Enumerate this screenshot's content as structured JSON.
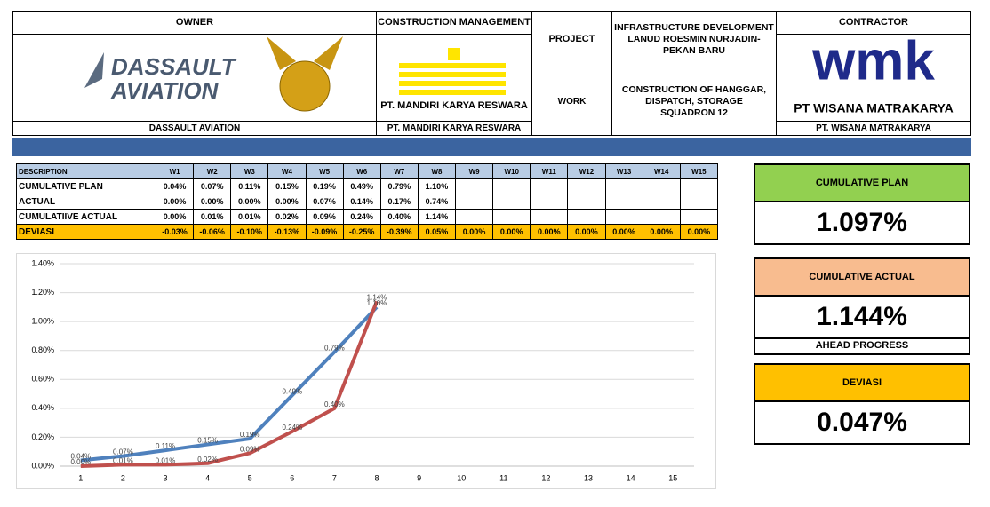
{
  "header": {
    "owner_title": "OWNER",
    "owner_logo": [
      "DASSAULT",
      "AVIATION"
    ],
    "owner_name": "DASSAULT AVIATION",
    "cm_title": "CONSTRUCTION MANAGEMENT",
    "cm_logo": "PT. MANDIRI KARYA RESWARA",
    "cm_name": "PT. MANDIRI KARYA RESWARA",
    "project_label": "PROJECT",
    "project": "INFRASTRUCTURE DEVELOPMENT LANUD ROESMIN NURJADIN-PEKAN BARU",
    "work_label": "WORK",
    "work": "CONSTRUCTION OF HANGGAR, DISPATCH, STORAGE SQUADRON 12",
    "contractor_title": "CONTRACTOR",
    "contractor_logo": [
      "wmk",
      "PT WISANA MATRAKARYA"
    ],
    "contractor_name": "PT. WISANA MATRAKARYA"
  },
  "table": {
    "columns": [
      "DESCRIPTION",
      "W1",
      "W2",
      "W3",
      "W4",
      "W5",
      "W6",
      "W7",
      "W8",
      "W9",
      "W10",
      "W11",
      "W12",
      "W13",
      "W14",
      "W15"
    ],
    "rows": [
      {
        "label": "CUMULATIVE PLAN",
        "values": [
          "0.04%",
          "0.07%",
          "0.11%",
          "0.15%",
          "0.19%",
          "0.49%",
          "0.79%",
          "1.10%"
        ]
      },
      {
        "label": "ACTUAL",
        "values": [
          "0.00%",
          "0.00%",
          "0.00%",
          "0.00%",
          "0.07%",
          "0.14%",
          "0.17%",
          "0.74%"
        ]
      },
      {
        "label": "CUMULATIIVE ACTUAL",
        "values": [
          "0.00%",
          "0.01%",
          "0.01%",
          "0.02%",
          "0.09%",
          "0.24%",
          "0.40%",
          "1.14%"
        ]
      },
      {
        "label": "DEVIASI",
        "values": [
          "-0.03%",
          "-0.06%",
          "-0.10%",
          "-0.13%",
          "-0.09%",
          "-0.25%",
          "-0.39%",
          "0.05%",
          "0.00%",
          "0.00%",
          "0.00%",
          "0.00%",
          "0.00%",
          "0.00%",
          "0.00%"
        ]
      }
    ]
  },
  "summary": [
    {
      "title": "CUMULATIVE PLAN",
      "value": "1.097%",
      "color": "#92d050"
    },
    {
      "title": "CUMULATIVE ACTUAL",
      "value": "1.144%",
      "note": "AHEAD PROGRESS",
      "color": "#f8bc8f"
    },
    {
      "title": "DEVIASI",
      "value": "0.047%",
      "color": "#ffc000"
    }
  ],
  "chart_data": {
    "type": "line",
    "categories": [
      "1",
      "2",
      "3",
      "4",
      "5",
      "6",
      "7",
      "8",
      "9",
      "10",
      "11",
      "12",
      "13",
      "14",
      "15"
    ],
    "series": [
      {
        "color": "#4f81bd",
        "values": [
          0.04,
          0.07,
          0.11,
          0.15,
          0.19,
          0.49,
          0.79,
          1.1,
          null,
          null,
          null,
          null,
          null,
          null,
          null
        ],
        "value_labels": [
          "0.04%",
          "0.07%",
          "0.11%",
          "0.15%",
          "0.19%",
          "0.49%",
          "0.79%",
          "1.10%",
          null,
          null,
          null,
          null,
          null,
          null,
          null
        ]
      },
      {
        "color": "#c0504d",
        "values": [
          0.0,
          0.01,
          0.01,
          0.02,
          0.09,
          0.24,
          0.4,
          1.14,
          null,
          null,
          null,
          null,
          null,
          null,
          null
        ],
        "value_labels": [
          "0.00%",
          "0.01%",
          "0.01%",
          "0.02%",
          "0.09%",
          "0.24%",
          "0.40%",
          "1.14%",
          null,
          null,
          null,
          null,
          null,
          null,
          null
        ]
      }
    ],
    "ylim": [
      0,
      1.4
    ],
    "yticks": [
      {
        "value": 0,
        "label": "0.00%"
      },
      {
        "value": 0.2,
        "label": "0.20%"
      },
      {
        "value": 0.4,
        "label": "0.40%"
      },
      {
        "value": 0.6,
        "label": "0.60%"
      },
      {
        "value": 0.8,
        "label": "0.80%"
      },
      {
        "value": 1.0,
        "label": "1.00%"
      },
      {
        "value": 1.2,
        "label": "1.20%"
      },
      {
        "value": 1.4,
        "label": "1.40%"
      }
    ],
    "grid": true
  }
}
